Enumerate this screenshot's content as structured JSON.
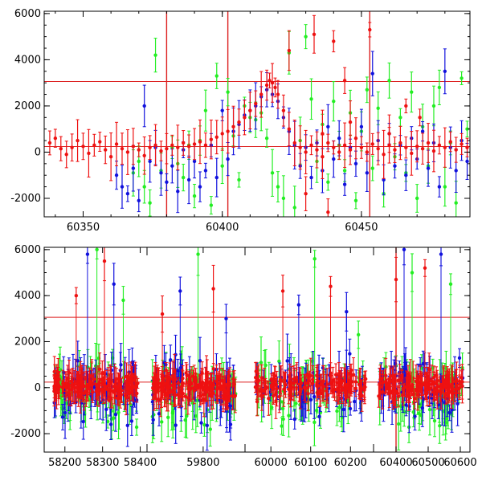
{
  "colors": {
    "red": "#ee1111",
    "green": "#22ee22",
    "blue": "#1111dd",
    "axis": "#000000",
    "reference_line": "#dd2222"
  },
  "chart_data": [
    {
      "type": "scatter",
      "panel": "top",
      "title": "",
      "xlabel": "",
      "ylabel": "",
      "xlim": [
        60336,
        60489
      ],
      "ylim": [
        -2800,
        6100
      ],
      "xticks": [
        60350,
        60400,
        60450
      ],
      "yticks": [
        -2000,
        0,
        2000,
        4000,
        6000
      ],
      "reference_lines": {
        "horizontal": [
          3060,
          240
        ],
        "vertical": [
          60380,
          60402,
          60453
        ]
      },
      "series": [
        {
          "color": "red",
          "points": [
            [
              60338,
              400
            ],
            [
              60340,
              600
            ],
            [
              60342,
              150
            ],
            [
              60344,
              -100
            ],
            [
              60346,
              200
            ],
            [
              60348,
              500
            ],
            [
              60350,
              250
            ],
            [
              60352,
              -50
            ],
            [
              60354,
              300
            ],
            [
              60356,
              450
            ],
            [
              60358,
              100
            ],
            [
              60360,
              -200
            ],
            [
              60362,
              350
            ],
            [
              60364,
              150
            ],
            [
              60366,
              0
            ],
            [
              60368,
              250
            ],
            [
              60370,
              100
            ],
            [
              60372,
              -150
            ],
            [
              60374,
              200
            ],
            [
              60376,
              300
            ],
            [
              60378,
              50
            ],
            [
              60380,
              150
            ],
            [
              60382,
              300
            ],
            [
              60384,
              200
            ],
            [
              60386,
              400
            ],
            [
              60388,
              250
            ],
            [
              60390,
              350
            ],
            [
              60392,
              450
            ],
            [
              60394,
              300
            ],
            [
              60396,
              550
            ],
            [
              60398,
              650
            ],
            [
              60400,
              800
            ],
            [
              60402,
              900
            ],
            [
              60404,
              1100
            ],
            [
              60406,
              1300
            ],
            [
              60408,
              1500
            ],
            [
              60410,
              1800
            ],
            [
              60412,
              2100
            ],
            [
              60414,
              2500
            ],
            [
              60416,
              2900
            ],
            [
              60417,
              3100
            ],
            [
              60418,
              3000
            ],
            [
              60419,
              2800
            ],
            [
              60420,
              2500
            ],
            [
              60422,
              1800
            ],
            [
              60424,
              1000
            ],
            [
              60426,
              400
            ],
            [
              60428,
              200
            ],
            [
              60430,
              0
            ],
            [
              60432,
              300
            ],
            [
              60434,
              100
            ],
            [
              60436,
              -200
            ],
            [
              60438,
              400
            ],
            [
              60440,
              200
            ],
            [
              60442,
              0
            ],
            [
              60444,
              300
            ],
            [
              60446,
              100
            ],
            [
              60448,
              600
            ],
            [
              60450,
              200
            ],
            [
              60452,
              0
            ],
            [
              60454,
              350
            ],
            [
              60456,
              150
            ],
            [
              60458,
              -100
            ],
            [
              60460,
              300
            ],
            [
              60462,
              100
            ],
            [
              60464,
              400
            ],
            [
              60466,
              200
            ],
            [
              60468,
              -50
            ],
            [
              60470,
              250
            ],
            [
              60472,
              150
            ],
            [
              60474,
              400
            ],
            [
              60476,
              50
            ],
            [
              60478,
              300
            ],
            [
              60480,
              200
            ],
            [
              60482,
              450
            ],
            [
              60484,
              100
            ],
            [
              60486,
              350
            ],
            [
              60488,
              200
            ],
            [
              60433,
              5100
            ],
            [
              60440,
              4800
            ],
            [
              60444,
              3100
            ],
            [
              60453,
              5300
            ],
            [
              60466,
              2000
            ],
            [
              60471,
              1500
            ],
            [
              60424,
              4400
            ],
            [
              60436,
              800
            ],
            [
              60446,
              1300
            ],
            [
              60430,
              -1800
            ],
            [
              60438,
              -2600
            ],
            [
              60460,
              800
            ]
          ]
        },
        {
          "color": "green",
          "points": [
            [
              60368,
              -900
            ],
            [
              60370,
              -400
            ],
            [
              60372,
              -1500
            ],
            [
              60374,
              -2200
            ],
            [
              60376,
              4200
            ],
            [
              60378,
              -800
            ],
            [
              60382,
              200
            ],
            [
              60384,
              -500
            ],
            [
              60386,
              -1100
            ],
            [
              60388,
              300
            ],
            [
              60390,
              -1900
            ],
            [
              60392,
              500
            ],
            [
              60394,
              1800
            ],
            [
              60396,
              -2300
            ],
            [
              60398,
              3300
            ],
            [
              60400,
              -600
            ],
            [
              60402,
              2600
            ],
            [
              60404,
              700
            ],
            [
              60406,
              -1200
            ],
            [
              60408,
              2000
            ],
            [
              60410,
              1500
            ],
            [
              60412,
              1400
            ],
            [
              60414,
              1700
            ],
            [
              60416,
              600
            ],
            [
              60418,
              -900
            ],
            [
              60420,
              -1500
            ],
            [
              60422,
              -2000
            ],
            [
              60424,
              4300
            ],
            [
              60426,
              -2400
            ],
            [
              60428,
              500
            ],
            [
              60430,
              5000
            ],
            [
              60432,
              2300
            ],
            [
              60434,
              -400
            ],
            [
              60436,
              1200
            ],
            [
              60438,
              -1300
            ],
            [
              60440,
              2200
            ],
            [
              60442,
              300
            ],
            [
              60444,
              -800
            ],
            [
              60446,
              1700
            ],
            [
              60448,
              -2100
            ],
            [
              60450,
              900
            ],
            [
              60452,
              2700
            ],
            [
              60454,
              -700
            ],
            [
              60456,
              1900
            ],
            [
              60458,
              -1800
            ],
            [
              60460,
              3100
            ],
            [
              60462,
              -200
            ],
            [
              60464,
              1500
            ],
            [
              60466,
              -900
            ],
            [
              60468,
              2600
            ],
            [
              60470,
              -2000
            ],
            [
              60472,
              1100
            ],
            [
              60474,
              -600
            ],
            [
              60476,
              2000
            ],
            [
              60478,
              2800
            ],
            [
              60480,
              -1500
            ],
            [
              60482,
              400
            ],
            [
              60484,
              -2200
            ],
            [
              60486,
              3200
            ],
            [
              60488,
              1000
            ]
          ]
        },
        {
          "color": "blue",
          "points": [
            [
              60362,
              -1000
            ],
            [
              60364,
              -1500
            ],
            [
              60366,
              -1800
            ],
            [
              60368,
              -700
            ],
            [
              60370,
              -2100
            ],
            [
              60372,
              2000
            ],
            [
              60374,
              -400
            ],
            [
              60376,
              200
            ],
            [
              60378,
              -900
            ],
            [
              60380,
              -1300
            ],
            [
              60382,
              -600
            ],
            [
              60384,
              -1700
            ],
            [
              60386,
              100
            ],
            [
              60388,
              -1200
            ],
            [
              60390,
              -400
            ],
            [
              60392,
              -1500
            ],
            [
              60394,
              -800
            ],
            [
              60396,
              300
            ],
            [
              60398,
              -1100
            ],
            [
              60400,
              1800
            ],
            [
              60402,
              -300
            ],
            [
              60404,
              900
            ],
            [
              60406,
              1200
            ],
            [
              60408,
              1600
            ],
            [
              60410,
              1800
            ],
            [
              60412,
              2000
            ],
            [
              60414,
              2400
            ],
            [
              60416,
              2700
            ],
            [
              60418,
              2500
            ],
            [
              60420,
              2200
            ],
            [
              60422,
              1500
            ],
            [
              60424,
              900
            ],
            [
              60426,
              300
            ],
            [
              60428,
              -600
            ],
            [
              60430,
              200
            ],
            [
              60432,
              -1100
            ],
            [
              60434,
              400
            ],
            [
              60436,
              -800
            ],
            [
              60438,
              1100
            ],
            [
              60440,
              -300
            ],
            [
              60442,
              600
            ],
            [
              60444,
              -1400
            ],
            [
              60446,
              200
            ],
            [
              60448,
              -500
            ],
            [
              60450,
              1100
            ],
            [
              60452,
              -900
            ],
            [
              60454,
              3400
            ],
            [
              60456,
              500
            ],
            [
              60458,
              -1200
            ],
            [
              60460,
              800
            ],
            [
              60462,
              -600
            ],
            [
              60464,
              300
            ],
            [
              60466,
              -1000
            ],
            [
              60468,
              600
            ],
            [
              60470,
              -300
            ],
            [
              60472,
              900
            ],
            [
              60474,
              -700
            ],
            [
              60476,
              400
            ],
            [
              60478,
              -1500
            ],
            [
              60480,
              3500
            ],
            [
              60482,
              200
            ],
            [
              60484,
              -800
            ],
            [
              60486,
              500
            ],
            [
              60488,
              -400
            ]
          ]
        }
      ]
    },
    {
      "type": "scatter",
      "panel": "bottom",
      "title": "",
      "xlabel": "",
      "ylabel": "",
      "ylim": [
        -2800,
        6100
      ],
      "yticks": [
        -2000,
        0,
        2000,
        4000,
        6000
      ],
      "reference_lines": {
        "horizontal": [
          3060,
          240
        ]
      },
      "segments": [
        {
          "xlim": [
            58145,
            58418
          ],
          "xticks": [
            58200,
            58300,
            58400
          ],
          "data_range": [
            58170,
            58395
          ],
          "spikes": [
            [
              58230,
              4000
            ],
            [
              58260,
              5800
            ],
            [
              58285,
              6000
            ],
            [
              58305,
              5500
            ],
            [
              58330,
              4500
            ],
            [
              58355,
              3800
            ]
          ]
        },
        {
          "xlim": [
            59690,
            59882
          ],
          "xticks": [
            59800
          ],
          "data_range": [
            59700,
            59865
          ],
          "spikes": [
            [
              59720,
              3200
            ],
            [
              59755,
              4200
            ],
            [
              59790,
              5800
            ],
            [
              59820,
              4300
            ],
            [
              59845,
              3000
            ]
          ]
        },
        {
          "xlim": [
            59935,
            60258
          ],
          "xticks": [
            60000,
            60100,
            60200
          ],
          "data_range": [
            59960,
            60240
          ],
          "spikes": [
            [
              60030,
              4200
            ],
            [
              60070,
              3600
            ],
            [
              60110,
              5600
            ],
            [
              60150,
              4400
            ],
            [
              60190,
              3300
            ],
            [
              60220,
              2300
            ]
          ]
        },
        {
          "xlim": [
            60330,
            60630
          ],
          "xticks": [
            60400,
            60500,
            60600
          ],
          "data_range": [
            60345,
            60610
          ],
          "spikes": [
            [
              60400,
              4700
            ],
            [
              60425,
              6000
            ],
            [
              60450,
              5000
            ],
            [
              60490,
              5200
            ],
            [
              60540,
              5800
            ],
            [
              60570,
              4500
            ]
          ],
          "red_vertical": [
            60400
          ]
        }
      ]
    }
  ]
}
